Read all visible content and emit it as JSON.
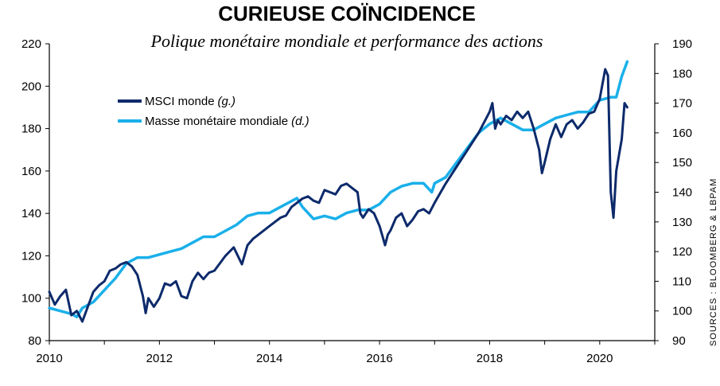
{
  "chart_data": {
    "type": "line",
    "title": "CURIEUSE COÏNCIDENCE",
    "subtitle": "Polique monétaire mondiale et performance des actions",
    "source": "SOURCES : BLOOMBERG & LBPAM",
    "x_ticks": [
      "2010",
      "2012",
      "2014",
      "2016",
      "2018",
      "2020"
    ],
    "xlim": [
      2010,
      2021
    ],
    "y_left": {
      "ylim": [
        80,
        220
      ],
      "ticks": [
        "80",
        "100",
        "120",
        "140",
        "160",
        "180",
        "200",
        "220"
      ]
    },
    "y_right": {
      "ylim": [
        90,
        190
      ],
      "ticks": [
        "90",
        "100",
        "110",
        "120",
        "130",
        "140",
        "150",
        "160",
        "170",
        "180",
        "190"
      ]
    },
    "legend_position": "top-left",
    "series": [
      {
        "name": "MSCI monde",
        "name_suffix": "(g.)",
        "axis": "left",
        "color": "#0d2a6b",
        "x": [
          2010.0,
          2010.1,
          2010.2,
          2010.3,
          2010.4,
          2010.5,
          2010.6,
          2010.7,
          2010.8,
          2010.9,
          2011.0,
          2011.1,
          2011.2,
          2011.3,
          2011.4,
          2011.5,
          2011.6,
          2011.7,
          2011.75,
          2011.8,
          2011.9,
          2012.0,
          2012.1,
          2012.2,
          2012.3,
          2012.4,
          2012.5,
          2012.6,
          2012.7,
          2012.8,
          2012.9,
          2013.0,
          2013.2,
          2013.35,
          2013.5,
          2013.6,
          2013.7,
          2013.8,
          2014.0,
          2014.1,
          2014.2,
          2014.3,
          2014.4,
          2014.5,
          2014.6,
          2014.7,
          2014.8,
          2014.9,
          2015.0,
          2015.1,
          2015.2,
          2015.3,
          2015.4,
          2015.5,
          2015.6,
          2015.65,
          2015.7,
          2015.8,
          2015.9,
          2016.0,
          2016.1,
          2016.15,
          2016.2,
          2016.3,
          2016.4,
          2016.5,
          2016.6,
          2016.7,
          2016.8,
          2016.9,
          2017.0,
          2017.2,
          2017.4,
          2017.6,
          2017.8,
          2018.0,
          2018.05,
          2018.1,
          2018.15,
          2018.2,
          2018.3,
          2018.4,
          2018.5,
          2018.6,
          2018.7,
          2018.8,
          2018.9,
          2018.95,
          2019.0,
          2019.1,
          2019.2,
          2019.3,
          2019.4,
          2019.5,
          2019.6,
          2019.7,
          2019.8,
          2019.9,
          2020.0,
          2020.1,
          2020.15,
          2020.2,
          2020.25,
          2020.3,
          2020.4,
          2020.45,
          2020.5
        ],
        "values": [
          103,
          97,
          101,
          104,
          92,
          94,
          89,
          96,
          103,
          106,
          108,
          113,
          114,
          116,
          117,
          115,
          111,
          101,
          93,
          100,
          96,
          100,
          107,
          106,
          108,
          101,
          100,
          108,
          112,
          109,
          112,
          113,
          120,
          124,
          116,
          125,
          128,
          130,
          134,
          136,
          138,
          139,
          143,
          145,
          147,
          148,
          146,
          145,
          151,
          150,
          149,
          153,
          154,
          152,
          150,
          140,
          138,
          142,
          140,
          134,
          125,
          130,
          132,
          138,
          140,
          134,
          137,
          141,
          142,
          140,
          145,
          154,
          162,
          170,
          178,
          188,
          192,
          180,
          184,
          182,
          186,
          184,
          188,
          185,
          188,
          180,
          170,
          159,
          164,
          175,
          182,
          176,
          182,
          184,
          180,
          183,
          187,
          188,
          194,
          208,
          205,
          150,
          138,
          160,
          175,
          192,
          190
        ]
      },
      {
        "name": "Masse monétaire mondiale",
        "name_suffix": "(d.)",
        "axis": "right",
        "color": "#1ab0ea",
        "x": [
          2010.0,
          2010.2,
          2010.4,
          2010.5,
          2010.6,
          2010.8,
          2011.0,
          2011.2,
          2011.4,
          2011.6,
          2011.8,
          2012.0,
          2012.2,
          2012.4,
          2012.6,
          2012.8,
          2013.0,
          2013.2,
          2013.4,
          2013.6,
          2013.8,
          2014.0,
          2014.2,
          2014.4,
          2014.5,
          2014.6,
          2014.8,
          2015.0,
          2015.2,
          2015.4,
          2015.6,
          2015.8,
          2016.0,
          2016.2,
          2016.4,
          2016.6,
          2016.8,
          2016.95,
          2017.0,
          2017.2,
          2017.4,
          2017.6,
          2017.8,
          2018.0,
          2018.2,
          2018.4,
          2018.6,
          2018.8,
          2019.0,
          2019.2,
          2019.4,
          2019.6,
          2019.8,
          2020.0,
          2020.2,
          2020.3,
          2020.4,
          2020.5
        ],
        "values": [
          101,
          100,
          99,
          98,
          101,
          103,
          107,
          111,
          116,
          118,
          118,
          119,
          120,
          121,
          123,
          125,
          125,
          127,
          129,
          132,
          133,
          133,
          135,
          137,
          138,
          135,
          131,
          132,
          131,
          133,
          134,
          134,
          136,
          140,
          142,
          143,
          143,
          140,
          143,
          145,
          150,
          155,
          160,
          163,
          165,
          163,
          161,
          161,
          163,
          165,
          166,
          167,
          167,
          171,
          172,
          172,
          179,
          184
        ]
      }
    ]
  }
}
